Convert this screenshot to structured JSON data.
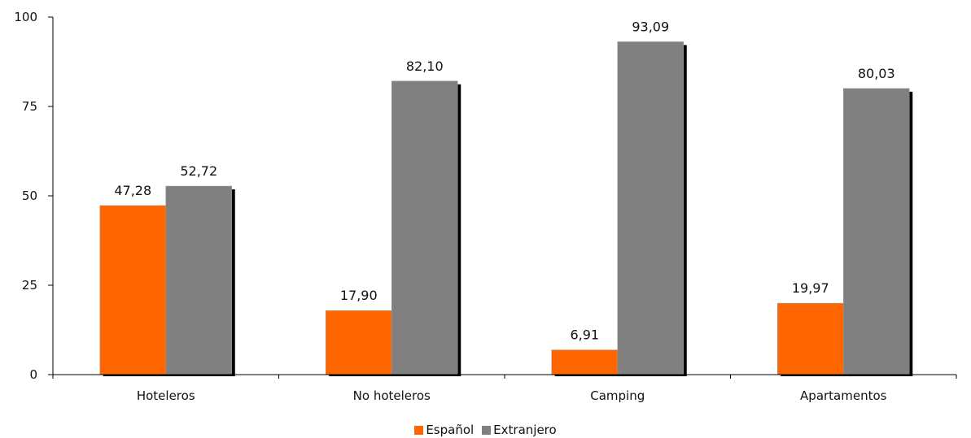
{
  "chart_data": {
    "type": "bar",
    "categories": [
      "Hoteleros",
      "No hoteleros",
      "Camping",
      "Apartamentos"
    ],
    "series": [
      {
        "name": "Español",
        "values": [
          47.28,
          17.9,
          6.91,
          19.97
        ],
        "labels": [
          "47,28",
          "17,90",
          "6,91",
          "19,97"
        ],
        "color": "#ff6600"
      },
      {
        "name": "Extranjero",
        "values": [
          52.72,
          82.1,
          93.09,
          80.03
        ],
        "labels": [
          "52,72",
          "82,10",
          "93,09",
          "80,03"
        ],
        "color": "#808080"
      }
    ],
    "ylim": [
      0,
      100
    ],
    "yticks": [
      "0",
      "25",
      "50",
      "75",
      "100"
    ],
    "grid": false,
    "legend": "bottom-center"
  }
}
